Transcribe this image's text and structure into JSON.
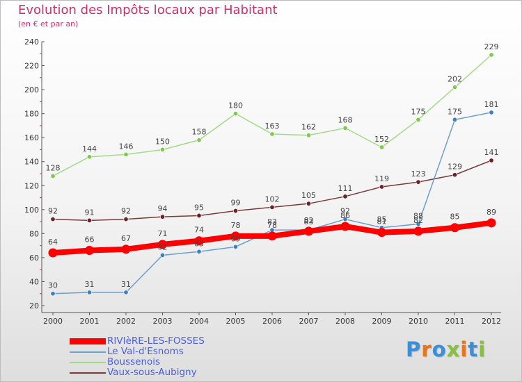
{
  "chart_data": {
    "type": "line",
    "title": "Evolution des Impôts locaux par Habitant",
    "subtitle": "(en € et par an)",
    "xlabel": "",
    "ylabel": "",
    "ylim": [
      20,
      240
    ],
    "yticks": [
      20,
      40,
      60,
      80,
      100,
      120,
      140,
      160,
      180,
      200,
      220,
      240
    ],
    "categories": [
      "2000",
      "2001",
      "2002",
      "2003",
      "2004",
      "2005",
      "2006",
      "2007",
      "2008",
      "2009",
      "2010",
      "2011",
      "2012"
    ],
    "grid": false,
    "legend_position": "bottom-left",
    "series": [
      {
        "name": "RIVIèRE-LES-FOSSES",
        "color": "#ff0000",
        "highlight": true,
        "values": [
          64,
          66,
          67,
          71,
          74,
          78,
          78,
          82,
          86,
          81,
          82,
          85,
          89
        ]
      },
      {
        "name": "Le Val-d'Esnoms",
        "color": "#6b9fd0",
        "marker": "#3f7fc0",
        "highlight": false,
        "values": [
          30,
          31,
          31,
          62,
          65,
          69,
          83,
          83,
          92,
          85,
          88,
          175,
          181
        ]
      },
      {
        "name": "Boussenois",
        "color": "#a2db86",
        "marker": "#7acb4e",
        "highlight": false,
        "values": [
          128,
          144,
          146,
          150,
          158,
          180,
          163,
          162,
          168,
          152,
          175,
          202,
          229
        ]
      },
      {
        "name": "Vaux-sous-Aubigny",
        "color": "#7a3a3a",
        "marker": "#6a2222",
        "highlight": false,
        "values": [
          92,
          91,
          92,
          94,
          95,
          99,
          102,
          105,
          111,
          119,
          123,
          129,
          141
        ]
      }
    ]
  },
  "logo": {
    "text": "Proxiti"
  }
}
